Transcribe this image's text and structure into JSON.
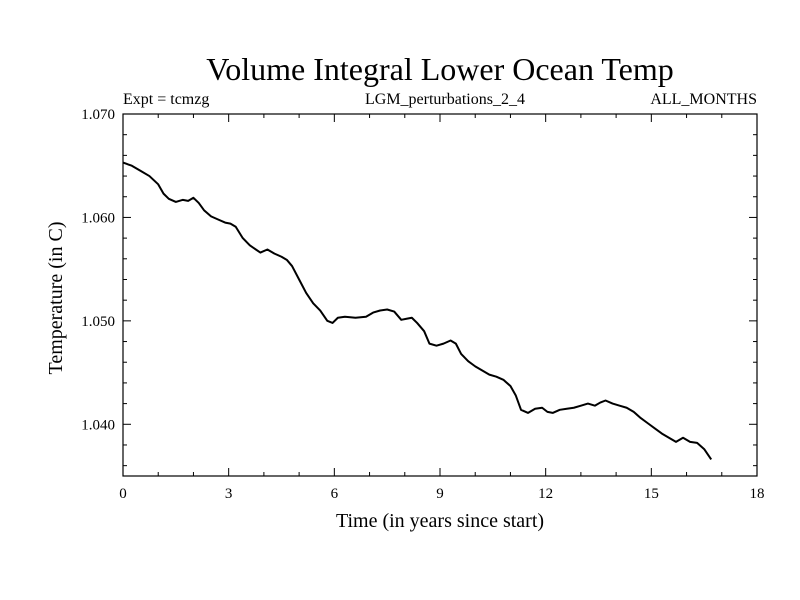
{
  "chart_data": {
    "type": "line",
    "title": "Volume Integral Lower Ocean Temp",
    "subtitle_left": "Expt = tcmzg",
    "subtitle_center": "LGM_perturbations_2_4",
    "subtitle_right": "ALL_MONTHS",
    "xlabel": "Time (in years since start)",
    "ylabel": "Temperature (in C)",
    "xlim": [
      0,
      18
    ],
    "ylim": [
      1.035,
      1.07
    ],
    "xticks": [
      0,
      3,
      6,
      9,
      12,
      15,
      18
    ],
    "xtick_labels": [
      "0",
      "3",
      "6",
      "9",
      "12",
      "15",
      "18"
    ],
    "yticks": [
      1.04,
      1.05,
      1.06,
      1.07
    ],
    "ytick_labels": [
      "1.040",
      "1.050",
      "1.060",
      "1.070"
    ],
    "grid": false,
    "series": [
      {
        "name": "Volume Integral Lower Ocean Temp",
        "color": "#000000",
        "x": [
          0.0,
          0.25,
          0.5,
          0.75,
          1.0,
          1.15,
          1.3,
          1.5,
          1.7,
          1.85,
          2.0,
          2.15,
          2.3,
          2.5,
          2.7,
          2.9,
          3.05,
          3.2,
          3.4,
          3.6,
          3.9,
          4.1,
          4.3,
          4.5,
          4.65,
          4.8,
          5.0,
          5.2,
          5.4,
          5.6,
          5.8,
          5.95,
          6.1,
          6.3,
          6.6,
          6.9,
          7.1,
          7.3,
          7.5,
          7.7,
          7.9,
          8.05,
          8.2,
          8.35,
          8.55,
          8.7,
          8.9,
          9.1,
          9.3,
          9.45,
          9.6,
          9.8,
          10.0,
          10.2,
          10.4,
          10.6,
          10.8,
          11.0,
          11.15,
          11.3,
          11.5,
          11.7,
          11.9,
          12.05,
          12.2,
          12.4,
          12.6,
          12.8,
          13.0,
          13.2,
          13.4,
          13.55,
          13.7,
          13.9,
          14.1,
          14.3,
          14.5,
          14.7,
          14.9,
          15.1,
          15.3,
          15.5,
          15.7,
          15.9,
          16.1,
          16.3,
          16.5,
          16.7
        ],
        "y": [
          1.0653,
          1.065,
          1.0645,
          1.064,
          1.0632,
          1.0623,
          1.0618,
          1.0615,
          1.0617,
          1.0616,
          1.0619,
          1.0614,
          1.0607,
          1.0601,
          1.0598,
          1.0595,
          1.0594,
          1.0591,
          1.058,
          1.0573,
          1.0566,
          1.0569,
          1.0565,
          1.0562,
          1.0559,
          1.0553,
          1.054,
          1.0527,
          1.0517,
          1.051,
          1.05,
          1.0498,
          1.0503,
          1.0504,
          1.0503,
          1.0504,
          1.0508,
          1.051,
          1.0511,
          1.0509,
          1.0501,
          1.0502,
          1.0503,
          1.0498,
          1.049,
          1.0478,
          1.0476,
          1.0478,
          1.0481,
          1.0478,
          1.0468,
          1.0461,
          1.0456,
          1.0452,
          1.0448,
          1.0446,
          1.0443,
          1.0437,
          1.0428,
          1.0414,
          1.0411,
          1.0415,
          1.0416,
          1.0412,
          1.0411,
          1.0414,
          1.0415,
          1.0416,
          1.0418,
          1.042,
          1.0418,
          1.0421,
          1.0423,
          1.042,
          1.0418,
          1.0416,
          1.0412,
          1.0406,
          1.0401,
          1.0396,
          1.0391,
          1.0387,
          1.0383,
          1.0387,
          1.0383,
          1.0382,
          1.0376,
          1.0366
        ]
      }
    ]
  }
}
